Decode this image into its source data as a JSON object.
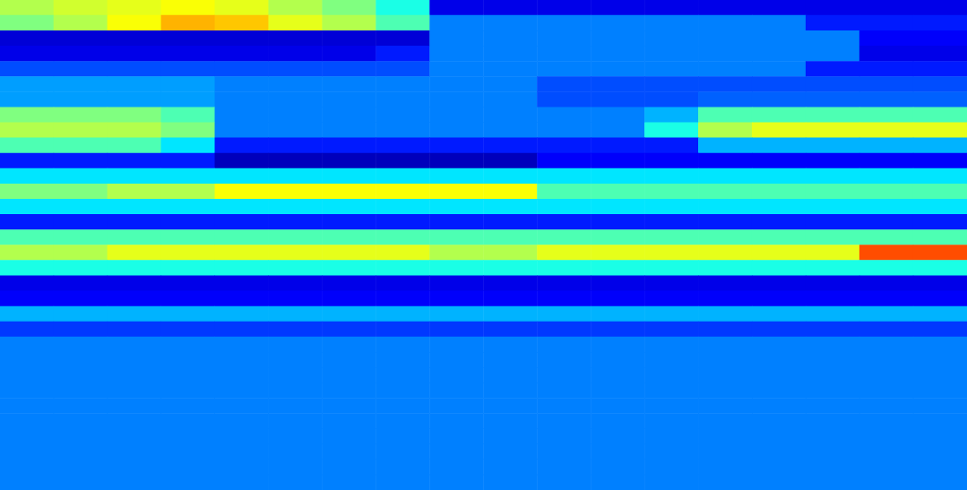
{
  "chart_data": {
    "type": "heatmap",
    "tick_labels": false,
    "zlim": [
      0,
      1
    ],
    "cells": [
      [
        0.55,
        0.58,
        0.6,
        0.62,
        0.6,
        0.55,
        0.5,
        0.4,
        0.1,
        0.1,
        0.1,
        0.1,
        0.1,
        0.1,
        0.1,
        0.1,
        0.1,
        0.1
      ],
      [
        0.5,
        0.55,
        0.62,
        0.7,
        0.68,
        0.6,
        0.55,
        0.45,
        0.25,
        0.25,
        0.25,
        0.25,
        0.25,
        0.25,
        0.25,
        0.15,
        0.15,
        0.15
      ],
      [
        0.08,
        0.08,
        0.08,
        0.08,
        0.08,
        0.08,
        0.08,
        0.08,
        0.25,
        0.25,
        0.25,
        0.25,
        0.25,
        0.25,
        0.25,
        0.25,
        0.12,
        0.12
      ],
      [
        0.1,
        0.1,
        0.1,
        0.1,
        0.1,
        0.1,
        0.1,
        0.15,
        0.25,
        0.25,
        0.25,
        0.25,
        0.25,
        0.25,
        0.25,
        0.25,
        0.1,
        0.1
      ],
      [
        0.2,
        0.2,
        0.2,
        0.2,
        0.2,
        0.2,
        0.2,
        0.2,
        0.25,
        0.25,
        0.25,
        0.25,
        0.25,
        0.25,
        0.25,
        0.15,
        0.15,
        0.15
      ],
      [
        0.28,
        0.28,
        0.28,
        0.28,
        0.25,
        0.25,
        0.25,
        0.25,
        0.25,
        0.25,
        0.2,
        0.2,
        0.2,
        0.2,
        0.2,
        0.2,
        0.2,
        0.2
      ],
      [
        0.28,
        0.28,
        0.28,
        0.28,
        0.25,
        0.25,
        0.25,
        0.25,
        0.25,
        0.25,
        0.2,
        0.2,
        0.2,
        0.22,
        0.22,
        0.22,
        0.22,
        0.22
      ],
      [
        0.5,
        0.5,
        0.5,
        0.45,
        0.25,
        0.25,
        0.25,
        0.25,
        0.25,
        0.25,
        0.25,
        0.25,
        0.3,
        0.45,
        0.45,
        0.45,
        0.45,
        0.45
      ],
      [
        0.55,
        0.55,
        0.55,
        0.5,
        0.25,
        0.25,
        0.25,
        0.25,
        0.25,
        0.25,
        0.25,
        0.25,
        0.4,
        0.55,
        0.6,
        0.6,
        0.6,
        0.6
      ],
      [
        0.45,
        0.45,
        0.45,
        0.35,
        0.15,
        0.15,
        0.15,
        0.15,
        0.15,
        0.15,
        0.15,
        0.15,
        0.15,
        0.3,
        0.3,
        0.3,
        0.3,
        0.3
      ],
      [
        0.15,
        0.15,
        0.15,
        0.15,
        0.05,
        0.05,
        0.05,
        0.05,
        0.05,
        0.05,
        0.12,
        0.12,
        0.12,
        0.12,
        0.12,
        0.12,
        0.12,
        0.12
      ],
      [
        0.35,
        0.35,
        0.35,
        0.35,
        0.35,
        0.35,
        0.35,
        0.35,
        0.35,
        0.35,
        0.35,
        0.35,
        0.35,
        0.35,
        0.35,
        0.35,
        0.35,
        0.35
      ],
      [
        0.5,
        0.5,
        0.55,
        0.55,
        0.62,
        0.62,
        0.62,
        0.62,
        0.62,
        0.62,
        0.45,
        0.45,
        0.45,
        0.45,
        0.45,
        0.45,
        0.45,
        0.45
      ],
      [
        0.35,
        0.35,
        0.35,
        0.35,
        0.35,
        0.35,
        0.35,
        0.35,
        0.35,
        0.35,
        0.35,
        0.35,
        0.35,
        0.35,
        0.35,
        0.35,
        0.35,
        0.35
      ],
      [
        0.15,
        0.15,
        0.15,
        0.15,
        0.15,
        0.15,
        0.15,
        0.15,
        0.15,
        0.15,
        0.15,
        0.15,
        0.15,
        0.15,
        0.15,
        0.15,
        0.15,
        0.15
      ],
      [
        0.45,
        0.45,
        0.45,
        0.45,
        0.45,
        0.45,
        0.45,
        0.45,
        0.45,
        0.45,
        0.45,
        0.45,
        0.45,
        0.45,
        0.45,
        0.45,
        0.45,
        0.45
      ],
      [
        0.55,
        0.55,
        0.6,
        0.6,
        0.6,
        0.6,
        0.6,
        0.6,
        0.55,
        0.55,
        0.6,
        0.6,
        0.6,
        0.6,
        0.6,
        0.6,
        0.8,
        0.8
      ],
      [
        0.4,
        0.4,
        0.4,
        0.4,
        0.4,
        0.4,
        0.4,
        0.4,
        0.4,
        0.4,
        0.4,
        0.4,
        0.4,
        0.4,
        0.4,
        0.4,
        0.4,
        0.4
      ],
      [
        0.1,
        0.1,
        0.1,
        0.1,
        0.1,
        0.1,
        0.1,
        0.1,
        0.1,
        0.1,
        0.1,
        0.1,
        0.1,
        0.1,
        0.1,
        0.1,
        0.1,
        0.1
      ],
      [
        0.12,
        0.12,
        0.12,
        0.12,
        0.12,
        0.12,
        0.12,
        0.12,
        0.12,
        0.12,
        0.12,
        0.12,
        0.12,
        0.12,
        0.12,
        0.12,
        0.12,
        0.12
      ],
      [
        0.3,
        0.3,
        0.3,
        0.3,
        0.3,
        0.3,
        0.3,
        0.3,
        0.3,
        0.3,
        0.3,
        0.3,
        0.3,
        0.3,
        0.3,
        0.3,
        0.3,
        0.3
      ],
      [
        0.18,
        0.18,
        0.18,
        0.18,
        0.18,
        0.18,
        0.18,
        0.18,
        0.18,
        0.18,
        0.18,
        0.18,
        0.18,
        0.18,
        0.18,
        0.18,
        0.18,
        0.18
      ],
      [
        0.25,
        0.25,
        0.25,
        0.25,
        0.25,
        0.25,
        0.25,
        0.25,
        0.25,
        0.25,
        0.25,
        0.25,
        0.25,
        0.25,
        0.25,
        0.25,
        0.25,
        0.25
      ],
      [
        0.25,
        0.25,
        0.25,
        0.25,
        0.25,
        0.25,
        0.25,
        0.25,
        0.25,
        0.25,
        0.25,
        0.25,
        0.25,
        0.25,
        0.25,
        0.25,
        0.25,
        0.25
      ],
      [
        0.25,
        0.25,
        0.25,
        0.25,
        0.25,
        0.25,
        0.25,
        0.25,
        0.25,
        0.25,
        0.25,
        0.25,
        0.25,
        0.25,
        0.25,
        0.25,
        0.25,
        0.25
      ],
      [
        0.25,
        0.25,
        0.25,
        0.25,
        0.25,
        0.25,
        0.25,
        0.25,
        0.25,
        0.25,
        0.25,
        0.25,
        0.25,
        0.25,
        0.25,
        0.25,
        0.25,
        0.25
      ],
      [
        0.25,
        0.25,
        0.25,
        0.25,
        0.25,
        0.25,
        0.25,
        0.25,
        0.25,
        0.25,
        0.25,
        0.25,
        0.25,
        0.25,
        0.25,
        0.25,
        0.25,
        0.25
      ],
      [
        0.25,
        0.25,
        0.25,
        0.25,
        0.25,
        0.25,
        0.25,
        0.25,
        0.25,
        0.25,
        0.25,
        0.25,
        0.25,
        0.25,
        0.25,
        0.25,
        0.25,
        0.25
      ],
      [
        0.25,
        0.25,
        0.25,
        0.25,
        0.25,
        0.25,
        0.25,
        0.25,
        0.25,
        0.25,
        0.25,
        0.25,
        0.25,
        0.25,
        0.25,
        0.25,
        0.25,
        0.25
      ],
      [
        0.25,
        0.25,
        0.25,
        0.25,
        0.25,
        0.25,
        0.25,
        0.25,
        0.25,
        0.25,
        0.25,
        0.25,
        0.25,
        0.25,
        0.25,
        0.25,
        0.25,
        0.25
      ],
      [
        0.25,
        0.25,
        0.25,
        0.25,
        0.25,
        0.25,
        0.25,
        0.25,
        0.25,
        0.25,
        0.25,
        0.25,
        0.25,
        0.25,
        0.25,
        0.25,
        0.25,
        0.25
      ],
      [
        0.25,
        0.25,
        0.25,
        0.25,
        0.25,
        0.25,
        0.25,
        0.25,
        0.25,
        0.25,
        0.25,
        0.25,
        0.25,
        0.25,
        0.25,
        0.25,
        0.25,
        0.25
      ]
    ]
  }
}
